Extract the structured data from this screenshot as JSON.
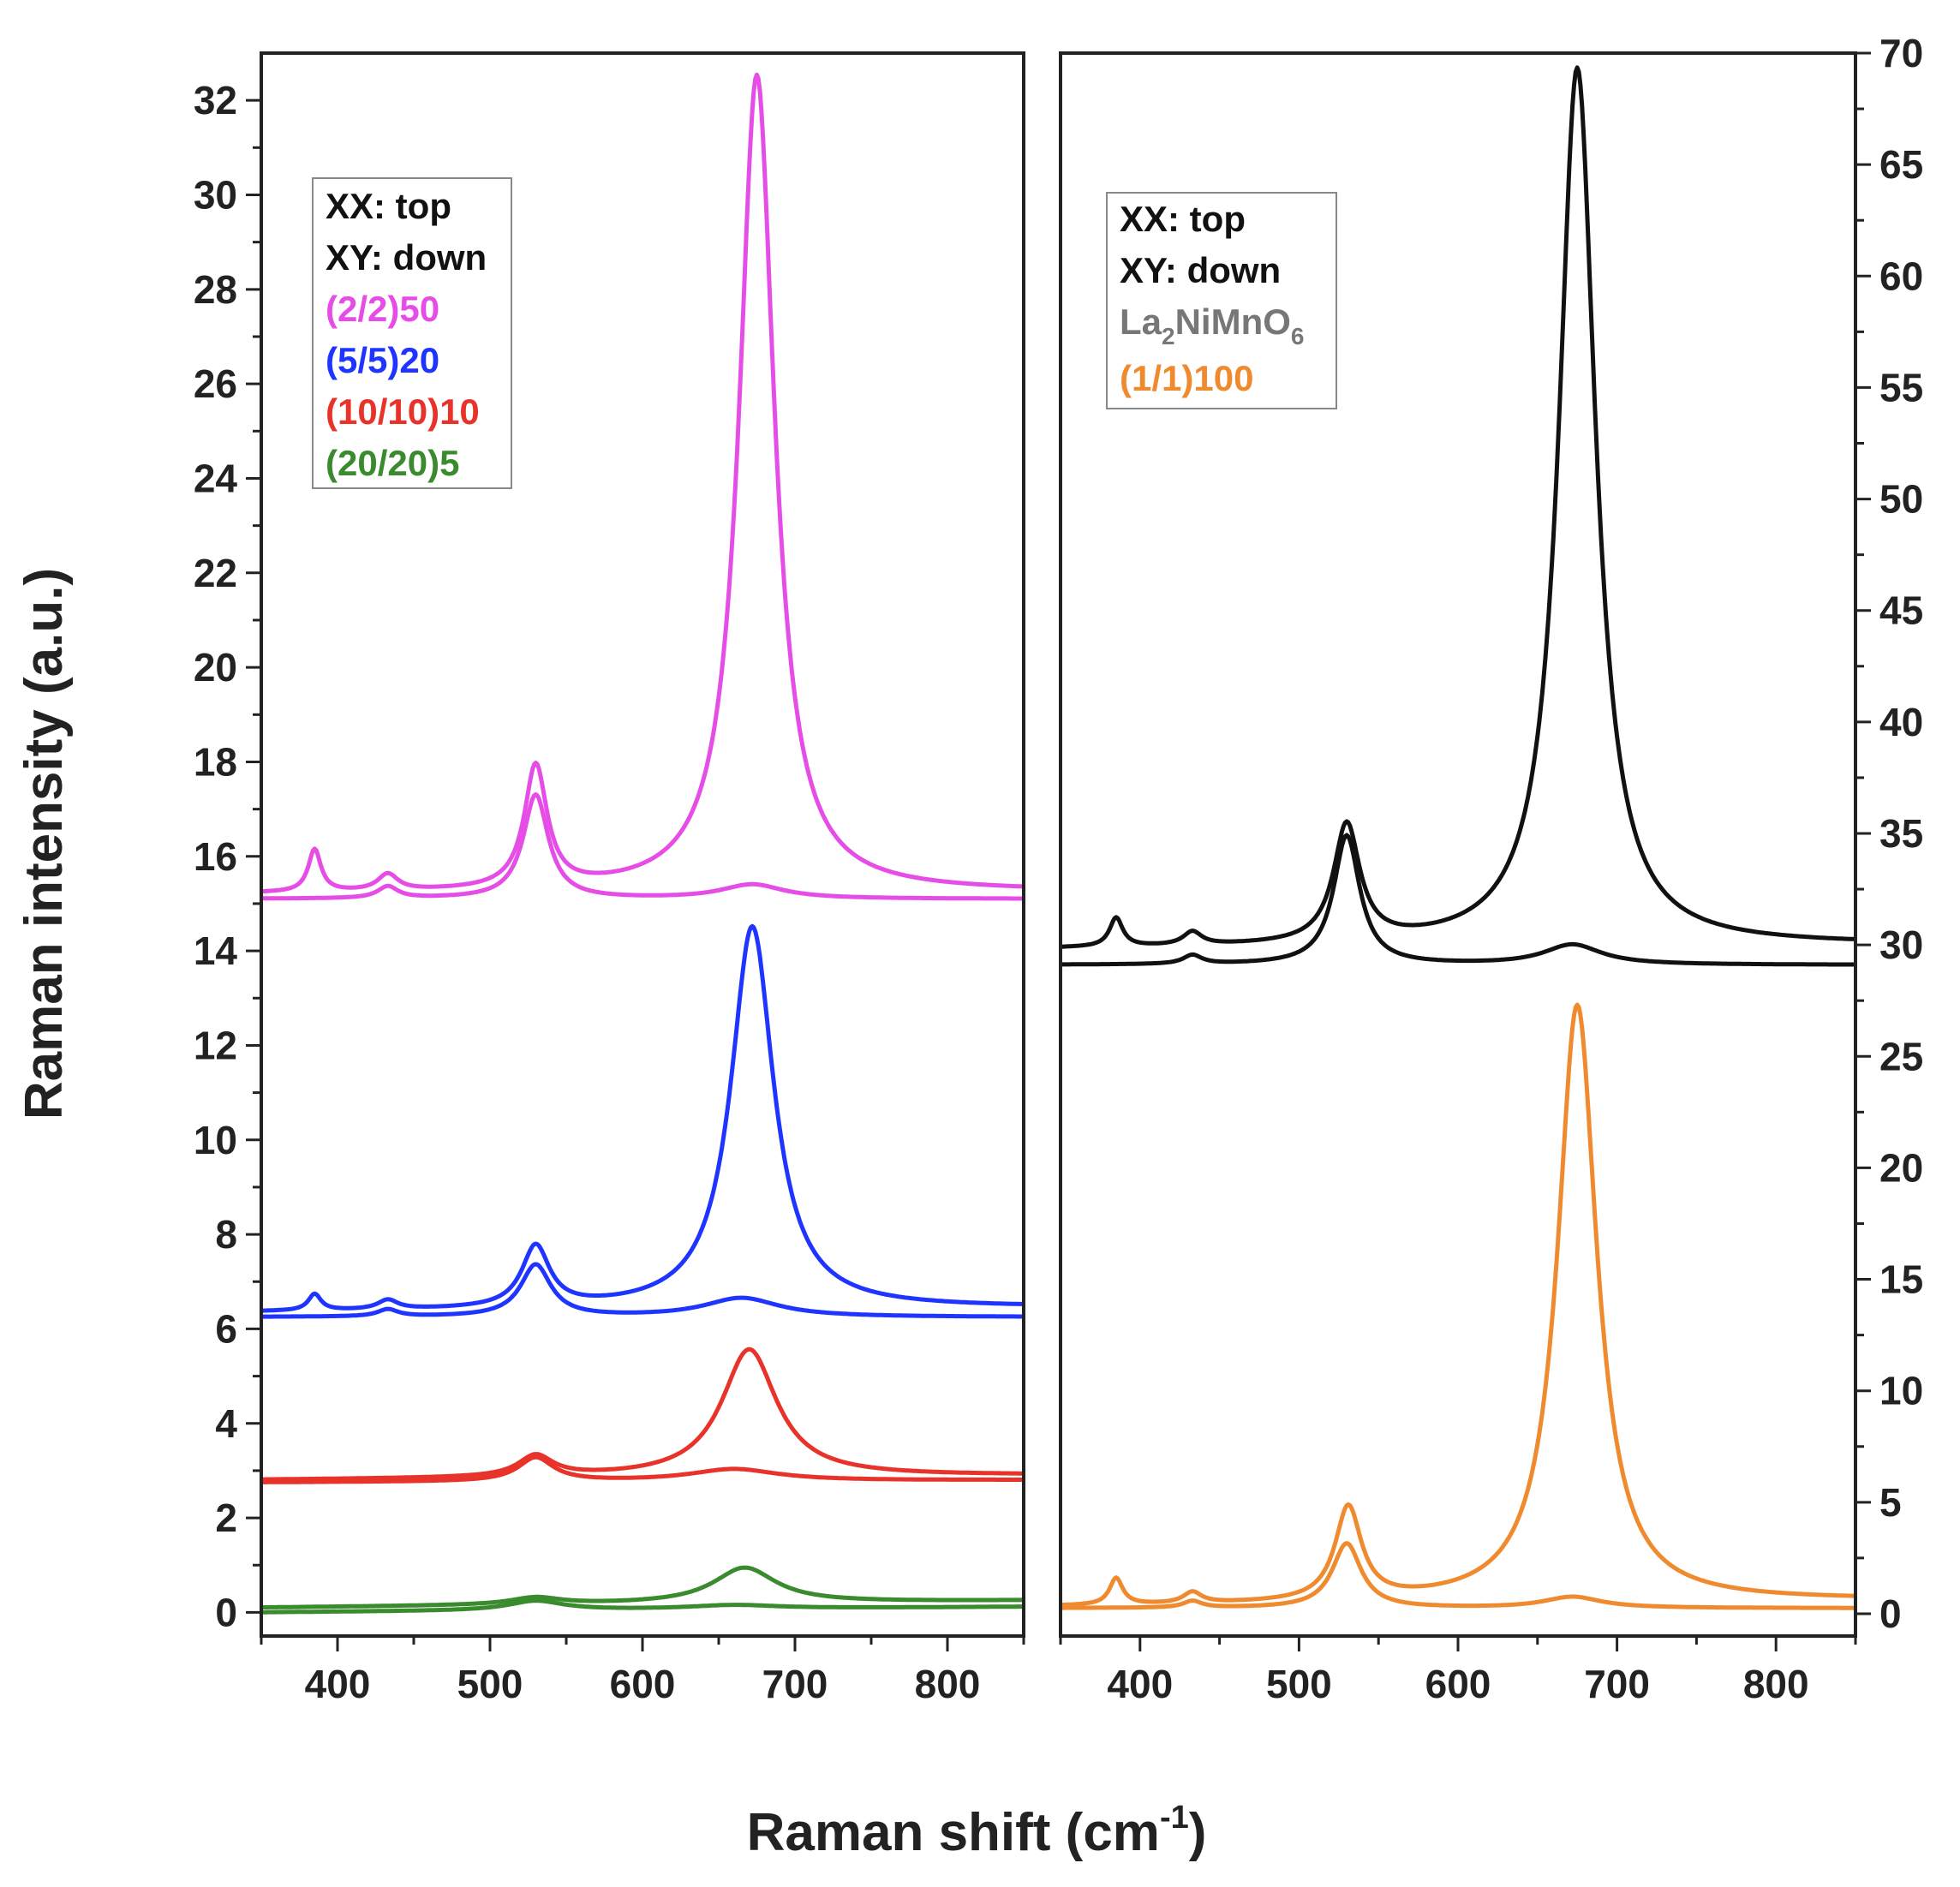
{
  "chart_data": [
    {
      "type": "line",
      "panel": "left",
      "xlabel": "Raman shift (cm",
      "xlabel_sup": "-1",
      "xlabel_close": ")",
      "ylabel": "Raman intensity (a.u.)",
      "xlim": [
        350,
        850
      ],
      "ylim": [
        -0.5,
        33
      ],
      "xticks": [
        400,
        500,
        600,
        700,
        800
      ],
      "yticks": [
        0,
        2,
        4,
        6,
        8,
        10,
        12,
        14,
        16,
        18,
        20,
        22,
        24,
        26,
        28,
        30,
        32
      ],
      "y_axis_side": "left",
      "legend": {
        "placement": "top-left",
        "entries": [
          {
            "text": "XX: top",
            "color": "#111111"
          },
          {
            "text": "XY: down",
            "color": "#111111"
          },
          {
            "text": "(2/2)50",
            "color": "#e64ce6"
          },
          {
            "text": "(5/5)20",
            "color": "#1f35ff"
          },
          {
            "text": "(10/10)10",
            "color": "#e8332b"
          },
          {
            "text": "(20/20)5",
            "color": "#3a8a2e"
          }
        ]
      },
      "series": [
        {
          "name": "(2/2)50 XX",
          "color": "#e64ce6",
          "baseline": 15.2,
          "slope": 0.05,
          "peaks": [
            {
              "x": 385,
              "h": 0.9,
              "w": 5
            },
            {
              "x": 433,
              "h": 0.35,
              "w": 8
            },
            {
              "x": 530,
              "h": 2.6,
              "w": 9
            },
            {
              "x": 675,
              "h": 17.3,
              "w": 14
            }
          ]
        },
        {
          "name": "(2/2)50 XY",
          "color": "#e64ce6",
          "baseline": 15.1,
          "slope": 0.0,
          "peaks": [
            {
              "x": 433,
              "h": 0.25,
              "w": 8
            },
            {
              "x": 530,
              "h": 2.2,
              "w": 10
            },
            {
              "x": 672,
              "h": 0.3,
              "w": 25
            }
          ]
        },
        {
          "name": "(5/5)20 XX",
          "color": "#1f35ff",
          "baseline": 6.35,
          "slope": 0.1,
          "peaks": [
            {
              "x": 385,
              "h": 0.35,
              "w": 5
            },
            {
              "x": 433,
              "h": 0.2,
              "w": 8
            },
            {
              "x": 530,
              "h": 1.3,
              "w": 11
            },
            {
              "x": 672,
              "h": 8.1,
              "w": 17
            }
          ]
        },
        {
          "name": "(5/5)20 XY",
          "color": "#1f35ff",
          "baseline": 6.25,
          "slope": 0.0,
          "peaks": [
            {
              "x": 433,
              "h": 0.15,
              "w": 8
            },
            {
              "x": 530,
              "h": 1.1,
              "w": 12
            },
            {
              "x": 665,
              "h": 0.4,
              "w": 30
            }
          ]
        },
        {
          "name": "(10/10)10 XX",
          "color": "#e8332b",
          "baseline": 2.8,
          "slope": 0.1,
          "peaks": [
            {
              "x": 530,
              "h": 0.45,
              "w": 14
            },
            {
              "x": 670,
              "h": 2.7,
              "w": 22
            }
          ]
        },
        {
          "name": "(10/10)10 XY",
          "color": "#e8332b",
          "baseline": 2.75,
          "slope": 0.05,
          "peaks": [
            {
              "x": 530,
              "h": 0.5,
              "w": 14
            },
            {
              "x": 660,
              "h": 0.25,
              "w": 35
            }
          ]
        },
        {
          "name": "(20/20)5 XX",
          "color": "#3a8a2e",
          "baseline": 0.1,
          "slope": 0.15,
          "peaks": [
            {
              "x": 530,
              "h": 0.15,
              "w": 20
            },
            {
              "x": 667,
              "h": 0.75,
              "w": 25
            }
          ]
        },
        {
          "name": "(20/20)5 XY",
          "color": "#3a8a2e",
          "baseline": 0.0,
          "slope": 0.12,
          "peaks": [
            {
              "x": 530,
              "h": 0.2,
              "w": 22
            },
            {
              "x": 660,
              "h": 0.08,
              "w": 35
            }
          ]
        }
      ]
    },
    {
      "type": "line",
      "panel": "right",
      "xlabel": "Raman shift (cm-1)",
      "ylabel": "",
      "xlim": [
        350,
        850
      ],
      "ylim": [
        -1,
        70
      ],
      "xticks": [
        400,
        500,
        600,
        700,
        800
      ],
      "yticks": [
        0,
        5,
        10,
        15,
        20,
        25,
        30,
        35,
        40,
        45,
        50,
        55,
        60,
        65,
        70
      ],
      "y_axis_side": "right",
      "legend": {
        "placement": "top-left",
        "entries": [
          {
            "text": "XX: top",
            "color": "#111111"
          },
          {
            "text": "XY: down",
            "color": "#111111"
          },
          {
            "text": "La2NiMnO6",
            "color": "#777777",
            "main": "La",
            "sub1": "2",
            "mid": "NiMnO",
            "sub2": "6"
          },
          {
            "text": "(1/1)100",
            "color": "#f08a2e"
          }
        ]
      },
      "series": [
        {
          "name": "La2NiMnO6 XX",
          "color": "#111111",
          "baseline": 29.8,
          "slope": 0.2,
          "peaks": [
            {
              "x": 385,
              "h": 1.3,
              "w": 5
            },
            {
              "x": 433,
              "h": 0.6,
              "w": 7
            },
            {
              "x": 530,
              "h": 5.3,
              "w": 10
            },
            {
              "x": 675,
              "h": 39.4,
              "w": 14
            }
          ]
        },
        {
          "name": "La2NiMnO6 XY",
          "color": "#111111",
          "baseline": 29.1,
          "slope": 0.0,
          "peaks": [
            {
              "x": 433,
              "h": 0.4,
              "w": 7
            },
            {
              "x": 530,
              "h": 5.8,
              "w": 10
            },
            {
              "x": 672,
              "h": 0.9,
              "w": 22
            }
          ]
        },
        {
          "name": "(1/1)100 XX",
          "color": "#f08a2e",
          "baseline": 0.3,
          "slope": 0.3,
          "peaks": [
            {
              "x": 385,
              "h": 1.2,
              "w": 5
            },
            {
              "x": 433,
              "h": 0.5,
              "w": 7
            },
            {
              "x": 531,
              "h": 4.2,
              "w": 10
            },
            {
              "x": 675,
              "h": 26.8,
              "w": 15
            }
          ]
        },
        {
          "name": "(1/1)100 XY",
          "color": "#f08a2e",
          "baseline": 0.25,
          "slope": 0.0,
          "peaks": [
            {
              "x": 433,
              "h": 0.3,
              "w": 7
            },
            {
              "x": 530,
              "h": 2.9,
              "w": 11
            },
            {
              "x": 672,
              "h": 0.5,
              "w": 22
            }
          ]
        }
      ]
    }
  ]
}
